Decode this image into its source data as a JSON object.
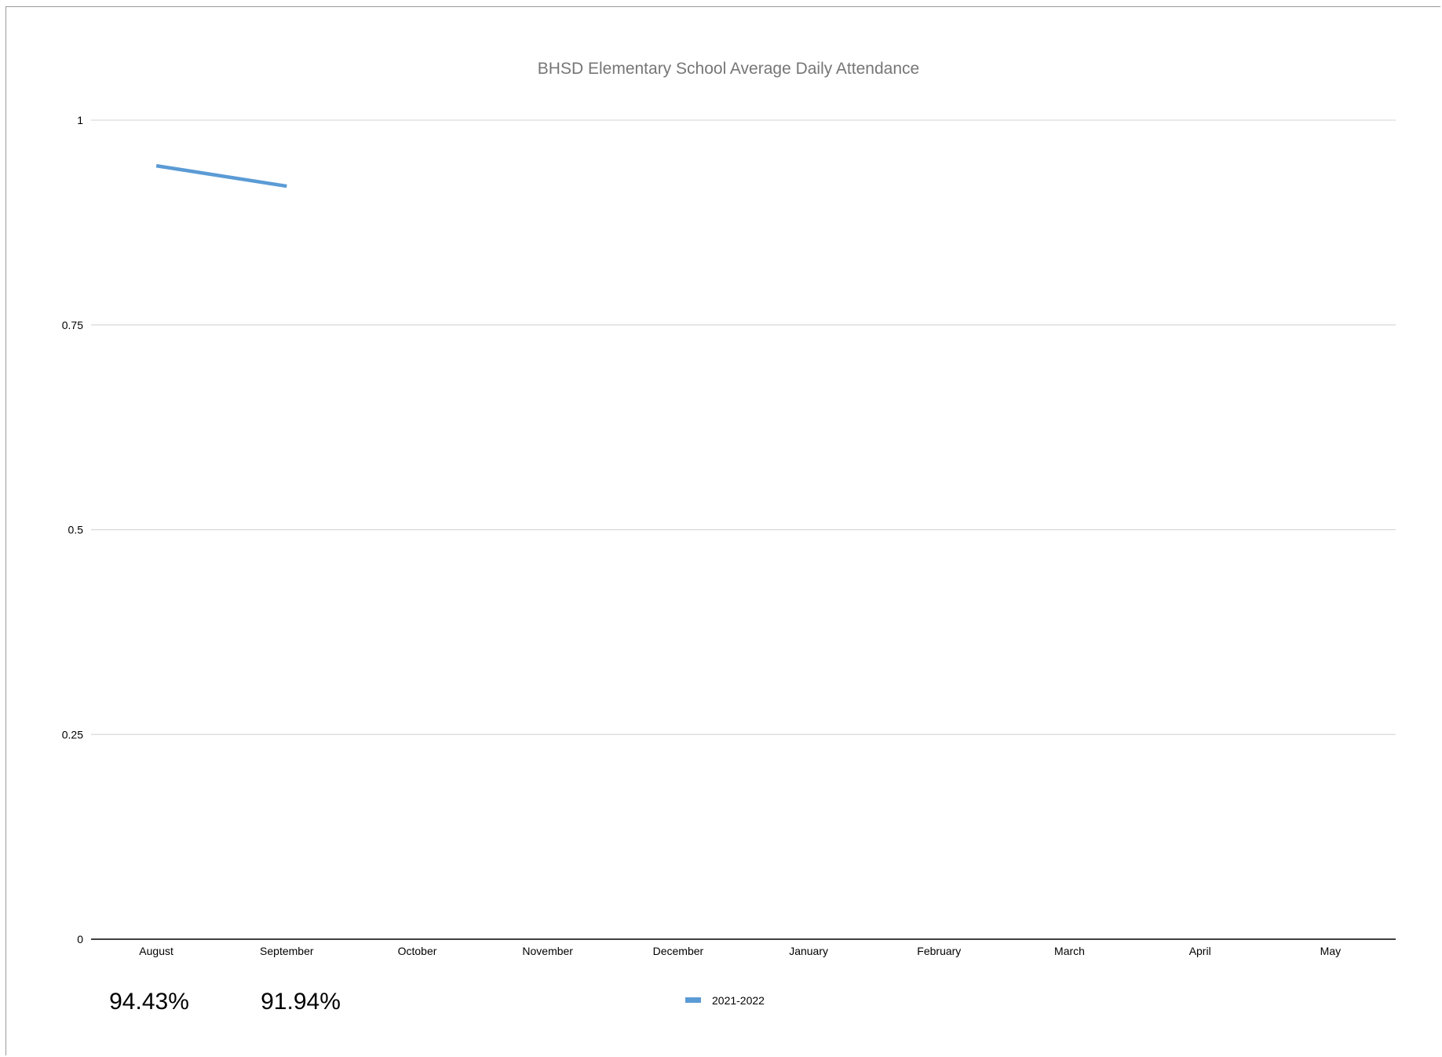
{
  "chart_data": {
    "type": "line",
    "title": "BHSD Elementary School Average Daily Attendance",
    "xlabel": "",
    "ylabel": "",
    "categories": [
      "August",
      "September",
      "October",
      "November",
      "December",
      "January",
      "February",
      "March",
      "April",
      "May"
    ],
    "series": [
      {
        "name": "2021-2022",
        "color": "#5b9bd5",
        "values": [
          0.9443,
          0.9194,
          null,
          null,
          null,
          null,
          null,
          null,
          null,
          null
        ]
      }
    ],
    "ylim": [
      0,
      1
    ],
    "yticks": [
      0,
      0.25,
      0.5,
      0.75,
      1
    ],
    "ytick_labels": [
      "0",
      "0.25",
      "0.5",
      "0.75",
      "1"
    ],
    "grid": true,
    "legend_position": "bottom",
    "value_labels": [
      "94.43%",
      "91.94%"
    ],
    "colors": {
      "gridline": "#d9d9d9",
      "axis": "#000000",
      "title": "#767676"
    }
  }
}
